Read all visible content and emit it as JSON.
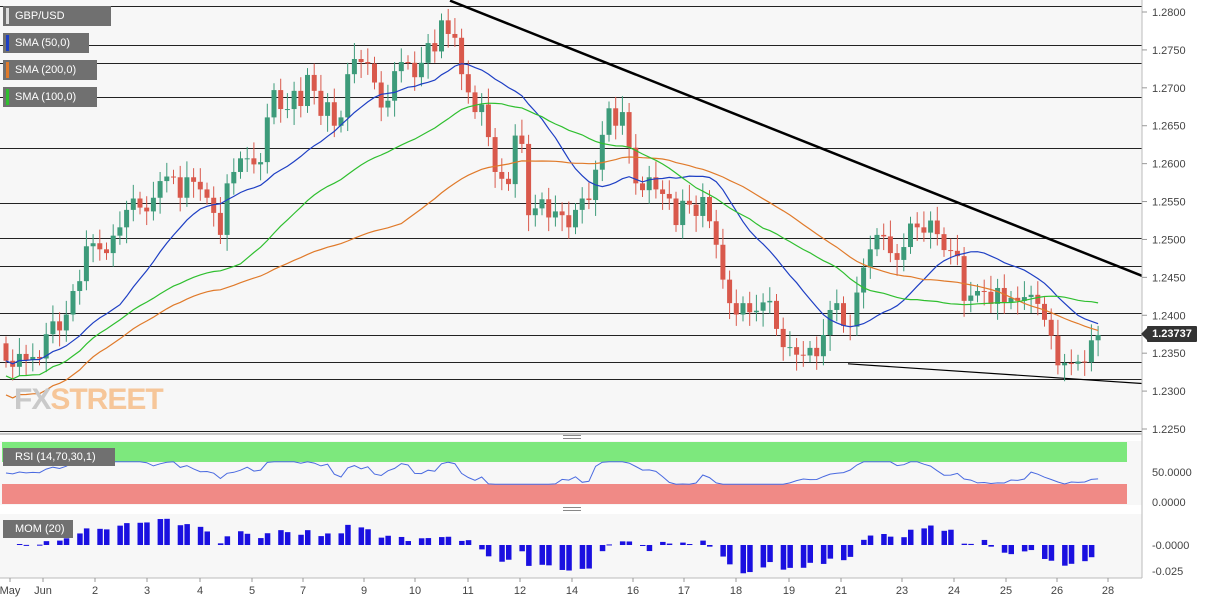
{
  "instrument": "GBP/USD",
  "watermark": {
    "part1": "FX",
    "part2": "STREET"
  },
  "last_price": "1.23737",
  "indicators": [
    {
      "label": "SMA (50,0)",
      "color": "#1e3fc4"
    },
    {
      "label": "SMA (200,0)",
      "color": "#e07a2a"
    },
    {
      "label": "SMA (100,0)",
      "color": "#2fbf2f"
    }
  ],
  "rsi": {
    "label": "RSI (14,70,30,1)",
    "color": "#4a6ae0",
    "ylim": [
      0,
      100
    ],
    "yticks": [
      "50.0000",
      "0.0000"
    ],
    "upper_zone_color": "#7de87d",
    "lower_zone_color": "#f08a86"
  },
  "momentum": {
    "label": "MOM (20)",
    "color": "#1a10e0",
    "yticks": [
      "-0.0000",
      "-0.025"
    ]
  },
  "colors": {
    "bull": "#3d9b7a",
    "bear": "#d9594c",
    "trend": "#000000"
  },
  "chart_data": {
    "type": "candlestick",
    "title": "GBP/USD",
    "ylim": [
      1.2245,
      1.2815
    ],
    "yticks": [
      "1.2800",
      "1.2750",
      "1.2700",
      "1.2650",
      "1.2600",
      "1.2550",
      "1.2500",
      "1.2450",
      "1.2400",
      "1.2350",
      "1.2300",
      "1.2250"
    ],
    "horizontal_levels": [
      1.2808,
      1.2757,
      1.2733,
      1.2688,
      1.262,
      1.2548,
      1.2502,
      1.2465,
      1.2403,
      1.2374,
      1.2338,
      1.2316,
      1.2248
    ],
    "x_tick_labels": [
      "May",
      "Jun",
      "2",
      "3",
      "4",
      "5",
      "7",
      "9",
      "10",
      "11",
      "12",
      "14",
      "16",
      "17",
      "18",
      "19",
      "21",
      "23",
      "24",
      "25",
      "26",
      "28"
    ],
    "candles_close": [
      1.234,
      1.2332,
      1.2349,
      1.2341,
      1.2345,
      1.2343,
      1.2375,
      1.2392,
      1.238,
      1.2401,
      1.2432,
      1.2445,
      1.2491,
      1.2495,
      1.2487,
      1.2482,
      1.2505,
      1.2516,
      1.2539,
      1.2554,
      1.2542,
      1.2537,
      1.2555,
      1.2577,
      1.2583,
      1.2582,
      1.2555,
      1.2582,
      1.2576,
      1.2566,
      1.2555,
      1.2535,
      1.2506,
      1.2574,
      1.2589,
      1.2607,
      1.2607,
      1.2599,
      1.2602,
      1.2661,
      1.2697,
      1.2672,
      1.2672,
      1.2696,
      1.2676,
      1.2717,
      1.2696,
      1.2663,
      1.2681,
      1.265,
      1.2661,
      1.2718,
      1.2738,
      1.2734,
      1.2732,
      1.2707,
      1.2674,
      1.2683,
      1.2722,
      1.2734,
      1.2733,
      1.2714,
      1.2733,
      1.2759,
      1.2748,
      1.2789,
      1.2771,
      1.2766,
      1.2718,
      1.2694,
      1.2668,
      1.2678,
      1.2635,
      1.2589,
      1.258,
      1.2573,
      1.2637,
      1.2626,
      1.2532,
      1.2541,
      1.2553,
      1.2529,
      1.2537,
      1.2532,
      1.2516,
      1.2539,
      1.2554,
      1.2552,
      1.2592,
      1.2638,
      1.2673,
      1.265,
      1.2668,
      1.2621,
      1.2574,
      1.2565,
      1.2582,
      1.2566,
      1.256,
      1.2554,
      1.2519,
      1.2551,
      1.2546,
      1.2531,
      1.2556,
      1.2524,
      1.2493,
      1.2447,
      1.2416,
      1.2401,
      1.2416,
      1.2404,
      1.2406,
      1.2417,
      1.2419,
      1.2382,
      1.2358,
      1.2358,
      1.2348,
      1.2347,
      1.2357,
      1.2346,
      1.2374,
      1.2407,
      1.2416,
      1.2386,
      1.2385,
      1.243,
      1.2463,
      1.2487,
      1.2506,
      1.2504,
      1.2482,
      1.2473,
      1.249,
      1.2521,
      1.2516,
      1.2509,
      1.2525,
      1.2507,
      1.2486,
      1.2485,
      1.2478,
      1.2419,
      1.2426,
      1.2432,
      1.2431,
      1.2415,
      1.2436,
      1.2417,
      1.2423,
      1.2419,
      1.2424,
      1.2427,
      1.2415,
      1.2394,
      1.2373,
      1.2334,
      1.2337,
      1.2336,
      1.2339,
      1.2338,
      1.2367,
      1.2374
    ],
    "candles_open": [
      1.2363,
      1.234,
      1.2332,
      1.2349,
      1.2341,
      1.2345,
      1.2343,
      1.2375,
      1.2392,
      1.238,
      1.2401,
      1.2432,
      1.2445,
      1.2491,
      1.2495,
      1.2487,
      1.2482,
      1.2505,
      1.2516,
      1.2539,
      1.2554,
      1.2542,
      1.2537,
      1.2555,
      1.2577,
      1.2583,
      1.2582,
      1.2555,
      1.2582,
      1.2576,
      1.2566,
      1.2555,
      1.2535,
      1.2506,
      1.2574,
      1.2589,
      1.2607,
      1.2607,
      1.2599,
      1.2602,
      1.2661,
      1.2697,
      1.2672,
      1.2672,
      1.2696,
      1.2676,
      1.2717,
      1.2696,
      1.2663,
      1.2681,
      1.265,
      1.2661,
      1.2718,
      1.2738,
      1.2734,
      1.2732,
      1.2707,
      1.2674,
      1.2683,
      1.2722,
      1.2734,
      1.2733,
      1.2714,
      1.2733,
      1.2759,
      1.2748,
      1.2789,
      1.2771,
      1.2766,
      1.2718,
      1.2694,
      1.2668,
      1.2678,
      1.2635,
      1.2589,
      1.258,
      1.2573,
      1.2637,
      1.2626,
      1.2532,
      1.2541,
      1.2553,
      1.2529,
      1.2537,
      1.2532,
      1.2516,
      1.2539,
      1.2554,
      1.2552,
      1.2592,
      1.2638,
      1.2673,
      1.265,
      1.2668,
      1.2621,
      1.2574,
      1.2565,
      1.2582,
      1.2566,
      1.256,
      1.2554,
      1.2519,
      1.2551,
      1.2546,
      1.2531,
      1.2556,
      1.2524,
      1.2493,
      1.2447,
      1.2416,
      1.2401,
      1.2416,
      1.2404,
      1.2406,
      1.2417,
      1.2419,
      1.2382,
      1.2358,
      1.2358,
      1.2348,
      1.2347,
      1.2357,
      1.2346,
      1.2374,
      1.2407,
      1.2416,
      1.2386,
      1.2385,
      1.243,
      1.2463,
      1.2487,
      1.2506,
      1.2504,
      1.2482,
      1.2473,
      1.249,
      1.2521,
      1.2516,
      1.2509,
      1.2525,
      1.2507,
      1.2486,
      1.2485,
      1.2478,
      1.2419,
      1.2426,
      1.2432,
      1.2431,
      1.2415,
      1.2436,
      1.2417,
      1.2423,
      1.2419,
      1.2424,
      1.2427,
      1.2415,
      1.2394,
      1.2373,
      1.2334,
      1.2337,
      1.2336,
      1.2339,
      1.2338,
      1.2367
    ]
  }
}
